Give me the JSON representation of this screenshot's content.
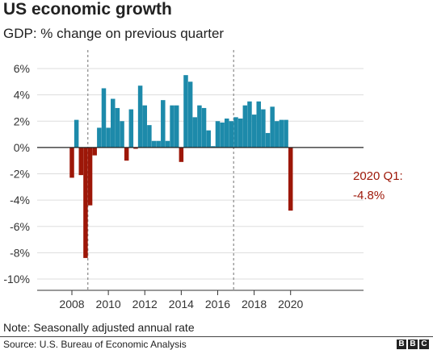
{
  "header": {
    "title": "US economic growth",
    "subtitle": "GDP: % change on previous quarter"
  },
  "footer": {
    "note": "Note: Seasonally adjusted annual rate",
    "source": "Source: U.S. Bureau of Economic Analysis",
    "logo": [
      "B",
      "B",
      "C"
    ]
  },
  "annotation": {
    "line1": "2020 Q1:",
    "line2": "-4.8%"
  },
  "colors": {
    "positive": "#1d8aaa",
    "negative": "#9d1708",
    "reference_line": "#888888"
  },
  "chart_data": {
    "type": "bar",
    "title": "US economic growth",
    "subtitle": "GDP: % change on previous quarter",
    "xlabel": "",
    "ylabel": "",
    "ylim": [
      -10,
      6
    ],
    "yticks": [
      6,
      4,
      2,
      0,
      -2,
      -4,
      -6,
      -8,
      -10
    ],
    "ytick_labels": [
      "6%",
      "4%",
      "2%",
      "0%",
      "-2%",
      "-4%",
      "-6%",
      "-8%",
      "-10%"
    ],
    "xtick_labels": [
      "2008",
      "2010",
      "2012",
      "2014",
      "2016",
      "2018",
      "2020"
    ],
    "grid": "horizontal",
    "reference_lines_after": [
      "2008 Q4",
      "2016 Q4"
    ],
    "categories": [
      "2008 Q1",
      "2008 Q2",
      "2008 Q3",
      "2008 Q4",
      "2009 Q1",
      "2009 Q2",
      "2009 Q3",
      "2009 Q4",
      "2010 Q1",
      "2010 Q2",
      "2010 Q3",
      "2010 Q4",
      "2011 Q1",
      "2011 Q2",
      "2011 Q3",
      "2011 Q4",
      "2012 Q1",
      "2012 Q2",
      "2012 Q3",
      "2012 Q4",
      "2013 Q1",
      "2013 Q2",
      "2013 Q3",
      "2013 Q4",
      "2014 Q1",
      "2014 Q2",
      "2014 Q3",
      "2014 Q4",
      "2015 Q1",
      "2015 Q2",
      "2015 Q3",
      "2015 Q4",
      "2016 Q1",
      "2016 Q2",
      "2016 Q3",
      "2016 Q4",
      "2017 Q1",
      "2017 Q2",
      "2017 Q3",
      "2017 Q4",
      "2018 Q1",
      "2018 Q2",
      "2018 Q3",
      "2018 Q4",
      "2019 Q1",
      "2019 Q2",
      "2019 Q3",
      "2019 Q4",
      "2020 Q1"
    ],
    "values": [
      -2.3,
      2.1,
      -2.1,
      -8.4,
      -4.4,
      -0.6,
      1.5,
      4.5,
      1.5,
      3.7,
      3.0,
      2.0,
      -1.0,
      2.9,
      -0.1,
      4.7,
      3.2,
      1.7,
      0.5,
      0.5,
      3.6,
      0.5,
      3.2,
      3.2,
      -1.1,
      5.5,
      5.0,
      2.3,
      3.2,
      3.0,
      1.3,
      0.1,
      2.0,
      1.9,
      2.2,
      2.0,
      2.3,
      2.2,
      3.2,
      3.5,
      2.5,
      3.5,
      2.9,
      1.1,
      3.1,
      2.0,
      2.1,
      2.1,
      -4.8
    ]
  }
}
